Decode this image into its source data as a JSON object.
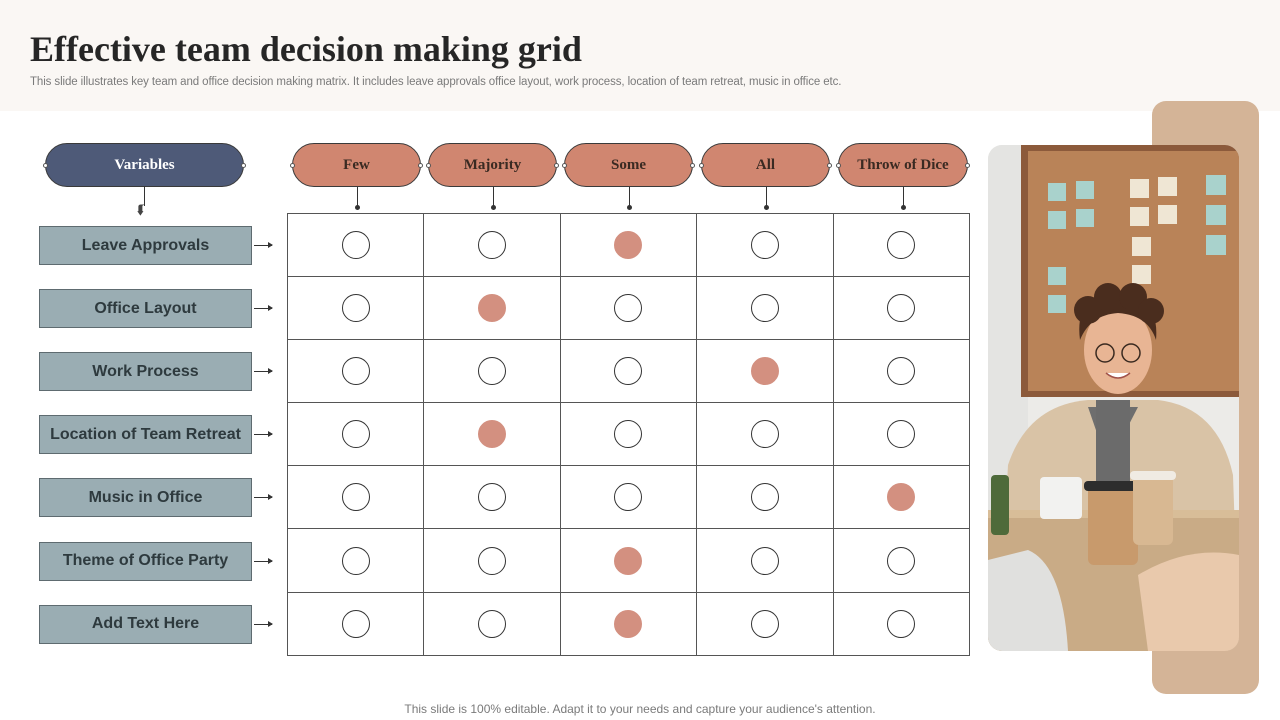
{
  "slide": {
    "title": "Effective team decision making grid",
    "subtitle": "This slide illustrates key team and office decision making matrix. It includes leave approvals office layout, work process, location of team retreat, music in office etc.",
    "footer": "This slide is 100% editable. Adapt it to your needs and capture your audience's attention."
  },
  "grid": {
    "variables_label": "Variables",
    "columns": [
      "Few",
      "Majority",
      "Some",
      "All",
      "Throw  of Dice"
    ],
    "rows": [
      {
        "label": "Leave Approvals",
        "selected": "Some"
      },
      {
        "label": "Office Layout",
        "selected": "Majority"
      },
      {
        "label": "Work Process",
        "selected": "All"
      },
      {
        "label": "Location of Team Retreat",
        "selected": "Majority"
      },
      {
        "label": "Music in Office",
        "selected": "Throw  of Dice"
      },
      {
        "label": "Theme of Office Party",
        "selected": "Some"
      },
      {
        "label": "Add Text Here",
        "selected": "Some"
      }
    ]
  },
  "colors": {
    "variables_pill": "#4e5a78",
    "option_pill": "#d08670",
    "row_label": "#9aadb3",
    "selected_circle": "#d39080",
    "side_panel": "#d4b497"
  },
  "icons": [
    "chevron-down-icon",
    "arrow-right-icon"
  ]
}
